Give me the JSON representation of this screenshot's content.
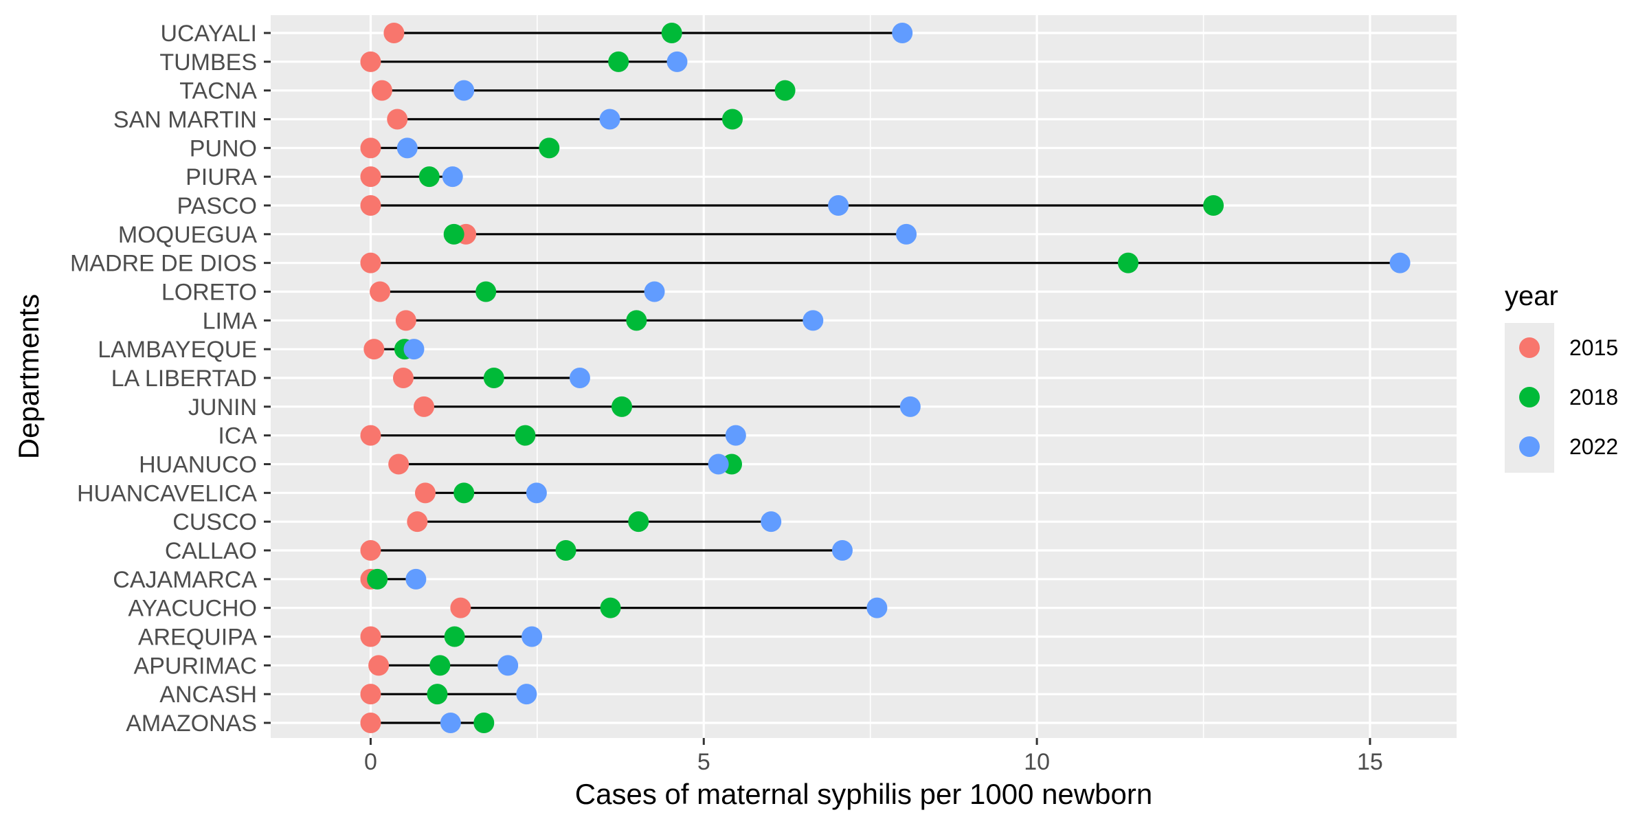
{
  "chart_data": {
    "type": "dumbbell",
    "title": "",
    "xlabel": "Cases of maternal syphilis per 1000 newborn",
    "ylabel": "Departments",
    "xlim": [
      -1.5,
      16.3
    ],
    "xticks": [
      0,
      5,
      10,
      15
    ],
    "xtick_labels": [
      "0",
      "5",
      "10",
      "15"
    ],
    "grid": true,
    "legend": {
      "title": "year",
      "position": "right"
    },
    "colors": {
      "2015": "#F8766D",
      "2018": "#00BA38",
      "2022": "#619CFF"
    },
    "categories": [
      "UCAYALI",
      "TUMBES",
      "TACNA",
      "SAN MARTIN",
      "PUNO",
      "PIURA",
      "PASCO",
      "MOQUEGUA",
      "MADRE DE DIOS",
      "LORETO",
      "LIMA",
      "LAMBAYEQUE",
      "LA LIBERTAD",
      "JUNIN",
      "ICA",
      "HUANUCO",
      "HUANCAVELICA",
      "CUSCO",
      "CALLAO",
      "CAJAMARCA",
      "AYACUCHO",
      "AREQUIPA",
      "APURIMAC",
      "ANCASH",
      "AMAZONAS"
    ],
    "series": [
      {
        "name": "2015",
        "values": [
          0.35,
          0.0,
          0.17,
          0.4,
          0.0,
          0.0,
          0.0,
          1.43,
          0.0,
          0.14,
          0.53,
          0.05,
          0.49,
          0.8,
          0.0,
          0.42,
          0.82,
          0.7,
          0.0,
          0.0,
          1.35,
          0.0,
          0.12,
          0.0,
          0.0
        ]
      },
      {
        "name": "2018",
        "values": [
          4.52,
          3.72,
          6.22,
          5.43,
          2.68,
          0.88,
          12.65,
          1.25,
          11.37,
          1.73,
          3.99,
          0.51,
          1.85,
          3.77,
          2.32,
          5.42,
          1.4,
          4.02,
          2.93,
          0.1,
          3.6,
          1.26,
          1.04,
          1.0,
          1.7
        ]
      },
      {
        "name": "2022",
        "values": [
          7.98,
          4.6,
          1.4,
          3.59,
          0.55,
          1.23,
          7.02,
          8.04,
          15.45,
          4.26,
          6.64,
          0.65,
          3.14,
          8.1,
          5.48,
          5.22,
          2.49,
          6.01,
          7.08,
          0.68,
          7.6,
          2.42,
          2.06,
          2.34,
          1.2
        ]
      }
    ]
  }
}
